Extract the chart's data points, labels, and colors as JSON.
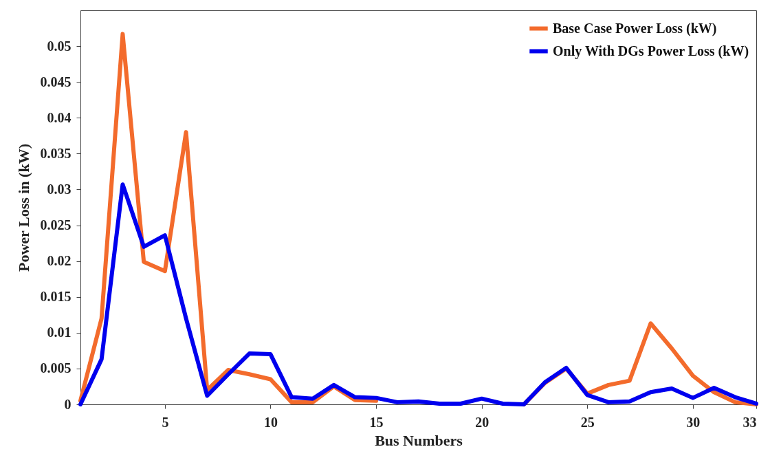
{
  "chart_data": {
    "type": "line",
    "xlabel": "Bus Numbers",
    "ylabel": "Power Loss in (kW)",
    "x": [
      1,
      2,
      3,
      4,
      5,
      6,
      7,
      8,
      9,
      10,
      11,
      12,
      13,
      14,
      15,
      16,
      17,
      18,
      19,
      20,
      21,
      22,
      23,
      24,
      25,
      26,
      27,
      28,
      29,
      30,
      31,
      32,
      33
    ],
    "series": [
      {
        "name": "Base Case Power Loss (kW)",
        "color": "#f36b2c",
        "values": [
          0.0005,
          0.012,
          0.0517,
          0.0199,
          0.0186,
          0.038,
          0.002,
          0.0048,
          0.0042,
          0.0035,
          0.0003,
          0.0003,
          0.0025,
          0.0006,
          0.0005,
          null,
          null,
          null,
          null,
          null,
          null,
          0,
          0.003,
          0.005,
          0.0015,
          0.0027,
          0.0033,
          0.0113,
          0.0078,
          0.004,
          0.0017,
          0.0003,
          0
        ]
      },
      {
        "name": "Only With DGs Power Loss (kW)",
        "color": "#0000ee",
        "values": [
          0,
          0.0063,
          0.0307,
          0.022,
          0.0236,
          0.012,
          0.0012,
          0.0042,
          0.0071,
          0.007,
          0.001,
          0.0008,
          0.0027,
          0.001,
          0.0009,
          0.0003,
          0.0004,
          0.0001,
          0.0001,
          0.0008,
          0.0001,
          0,
          0.0031,
          0.0051,
          0.0013,
          0.0003,
          0.0004,
          0.0017,
          0.0022,
          0.0009,
          0.0023,
          0.001,
          0.0001
        ]
      }
    ],
    "xlim": [
      1,
      33
    ],
    "xticks": [
      5,
      10,
      15,
      20,
      25,
      30,
      33
    ],
    "ylim": [
      0,
      0.055
    ],
    "yticks": [
      0,
      0.005,
      0.01,
      0.015,
      0.02,
      0.025,
      0.03,
      0.035,
      0.04,
      0.045,
      0.05
    ],
    "grid": false,
    "legend": "top right",
    "marker": "none",
    "line_style": "solid"
  }
}
